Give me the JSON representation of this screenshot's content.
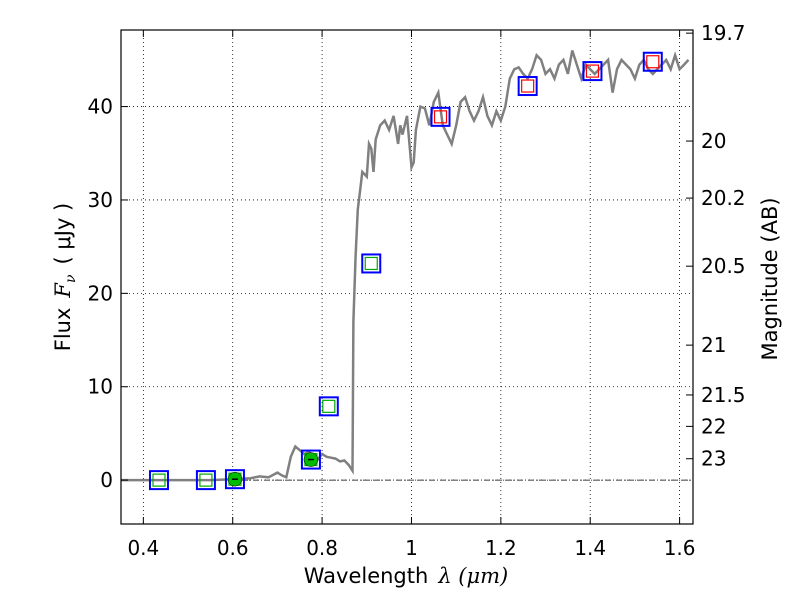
{
  "chart_data": {
    "type": "line",
    "xlabel": "Wavelength",
    "xlabel_math": "λ (μm)",
    "ylabel": "Flux",
    "ylabel_math": "F",
    "ylabel_sub": "ν",
    "ylabel_unit": "( μJy )",
    "y2label": "Magnitude (AB)",
    "xlim": [
      0.35,
      1.63
    ],
    "ylim": [
      -4.7,
      48.2
    ],
    "grid": true,
    "x_ticks": [
      0.4,
      0.6,
      0.8,
      1.0,
      1.2,
      1.4,
      1.6
    ],
    "x_tick_labels": [
      "0.4",
      "0.6",
      "0.8",
      "1",
      "1.2",
      "1.4",
      "1.6"
    ],
    "y_ticks": [
      0,
      10,
      20,
      30,
      40
    ],
    "y_tick_labels": [
      "0",
      "10",
      "20",
      "30",
      "40"
    ],
    "y2_ticks": [
      {
        "label": "19.7",
        "mag": 19.7
      },
      {
        "label": "20",
        "mag": 20.0
      },
      {
        "label": "20.2",
        "mag": 20.2
      },
      {
        "label": "20.5",
        "mag": 20.5
      },
      {
        "label": "21",
        "mag": 21.0
      },
      {
        "label": "21.5",
        "mag": 21.5
      },
      {
        "label": "22",
        "mag": 22.0
      },
      {
        "label": "23",
        "mag": 23.0
      }
    ],
    "series": [
      {
        "name": "model-spectrum",
        "color": "#808080",
        "x": [
          0.35,
          0.45,
          0.55,
          0.6,
          0.64,
          0.66,
          0.68,
          0.7,
          0.71,
          0.72,
          0.73,
          0.74,
          0.75,
          0.76,
          0.77,
          0.78,
          0.79,
          0.8,
          0.81,
          0.82,
          0.83,
          0.84,
          0.85,
          0.86,
          0.868,
          0.87,
          0.875,
          0.88,
          0.885,
          0.89,
          0.9,
          0.905,
          0.91,
          0.915,
          0.92,
          0.93,
          0.94,
          0.95,
          0.96,
          0.97,
          0.975,
          0.98,
          0.99,
          1.0,
          1.005,
          1.01,
          1.02,
          1.03,
          1.04,
          1.05,
          1.06,
          1.07,
          1.08,
          1.09,
          1.1,
          1.11,
          1.12,
          1.13,
          1.14,
          1.15,
          1.16,
          1.17,
          1.18,
          1.19,
          1.2,
          1.21,
          1.22,
          1.23,
          1.24,
          1.25,
          1.26,
          1.27,
          1.28,
          1.29,
          1.3,
          1.31,
          1.32,
          1.33,
          1.34,
          1.35,
          1.36,
          1.37,
          1.38,
          1.39,
          1.4,
          1.41,
          1.42,
          1.43,
          1.44,
          1.45,
          1.46,
          1.47,
          1.48,
          1.49,
          1.5,
          1.51,
          1.52,
          1.53,
          1.54,
          1.55,
          1.56,
          1.57,
          1.58,
          1.59,
          1.6,
          1.61,
          1.62
        ],
        "y": [
          0.0,
          0.0,
          0.0,
          0.1,
          0.2,
          0.4,
          0.3,
          0.8,
          0.5,
          0.3,
          2.5,
          3.6,
          3.2,
          2.8,
          3.0,
          2.7,
          2.2,
          2.8,
          2.5,
          2.4,
          2.3,
          2.0,
          2.1,
          1.6,
          1.0,
          17.0,
          24.0,
          29.0,
          31.0,
          33.0,
          32.5,
          36.0,
          35.5,
          33.0,
          36.5,
          38.0,
          38.5,
          37.5,
          39.0,
          36.0,
          38.0,
          37.0,
          39.0,
          33.5,
          34.0,
          37.5,
          40.0,
          39.8,
          38.0,
          40.5,
          41.5,
          38.0,
          37.0,
          36.0,
          38.0,
          40.5,
          41.0,
          39.5,
          38.5,
          39.5,
          41.0,
          39.0,
          38.0,
          39.5,
          38.5,
          40.0,
          43.0,
          44.0,
          44.2,
          43.5,
          43.0,
          44.0,
          45.5,
          45.0,
          43.5,
          44.0,
          43.0,
          44.5,
          45.0,
          43.5,
          46.0,
          44.5,
          43.0,
          44.5,
          44.0,
          43.5,
          44.0,
          44.5,
          45.0,
          41.5,
          44.0,
          45.0,
          44.5,
          44.0,
          43.0,
          44.5,
          45.0,
          44.0,
          43.5,
          44.0,
          44.5,
          45.0,
          44.0,
          45.5,
          44.0,
          44.5,
          45.0
        ]
      }
    ],
    "photometry": [
      {
        "name": "phot-0.44",
        "x": 0.435,
        "obs": 0.0,
        "model": 0.0,
        "obs_color": "#0000ff",
        "model_color": "#00aa00",
        "detected": false
      },
      {
        "name": "phot-0.54",
        "x": 0.54,
        "obs": 0.0,
        "model": 0.0,
        "obs_color": "#0000ff",
        "model_color": "#00aa00",
        "detected": false
      },
      {
        "name": "phot-0.60",
        "x": 0.605,
        "obs": 0.1,
        "model": 0.1,
        "obs_color": "#0000ff",
        "model_color": "#00aa00",
        "detected": true
      },
      {
        "name": "phot-0.77",
        "x": 0.775,
        "obs": 2.2,
        "model": 2.2,
        "obs_color": "#0000ff",
        "model_color": "#00aa00",
        "detected": true
      },
      {
        "name": "phot-0.81",
        "x": 0.815,
        "obs": 7.9,
        "model": 7.9,
        "obs_color": "#0000ff",
        "model_color": "#00aa00",
        "detected": false
      },
      {
        "name": "phot-0.91",
        "x": 0.91,
        "obs": 23.2,
        "model": 23.2,
        "obs_color": "#0000ff",
        "model_color": "#00aa00",
        "detected": false
      },
      {
        "name": "phot-1.06",
        "x": 1.065,
        "obs": 38.9,
        "model": 38.9,
        "obs_color": "#0000ff",
        "model_color": "#ff0000",
        "detected": false
      },
      {
        "name": "phot-1.26",
        "x": 1.26,
        "obs": 42.2,
        "model": 42.2,
        "obs_color": "#0000ff",
        "model_color": "#ff0000",
        "detected": false
      },
      {
        "name": "phot-1.41",
        "x": 1.405,
        "obs": 43.8,
        "model": 43.8,
        "obs_color": "#0000ff",
        "model_color": "#ff0000",
        "detected": false
      },
      {
        "name": "phot-1.54",
        "x": 1.54,
        "obs": 44.8,
        "model": 44.8,
        "obs_color": "#0000ff",
        "model_color": "#ff0000",
        "detected": false
      }
    ],
    "zero_line": 0
  }
}
